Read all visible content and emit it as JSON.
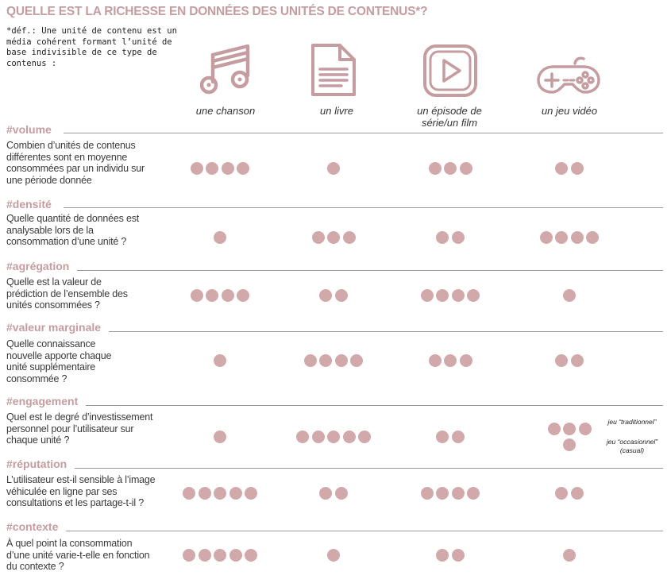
{
  "title": "QUELLE EST LA RICHESSE EN DONNÉES DES UNITÉS DE CONTENUS*?",
  "definition": "*déf.: Une unité de contenu est un média cohérent formant l’unité de base indivisible de ce type de contenus :",
  "colors": {
    "accent": "#c59ca0",
    "dot": "#d2a9ab",
    "rule": "#9a9a9a"
  },
  "columns": [
    {
      "label": "une chanson",
      "icon": "music-note-icon"
    },
    {
      "label": "un livre",
      "icon": "document-icon"
    },
    {
      "label": "un épisode de série/un film",
      "icon": "play-icon"
    },
    {
      "label": "un jeu vidéo",
      "icon": "gamepad-icon"
    }
  ],
  "sections": [
    {
      "tag": "#volume",
      "question": "Combien d’unités de contenus différentes sont en moyenne consommées par un individu sur une période donnée",
      "ratings": [
        4,
        1,
        3,
        2
      ]
    },
    {
      "tag": "#densité",
      "question": "Quelle quantité de données est analysable lors de la consommation d’une unité ?",
      "ratings": [
        1,
        3,
        2,
        4
      ]
    },
    {
      "tag": "#agrégation",
      "question": "Quelle est la valeur de prédiction de l’ensemble des unités consommées ?",
      "ratings": [
        4,
        2,
        4,
        1
      ]
    },
    {
      "tag": "#valeur marginale",
      "question": "Quelle connaissance nouvelle apporte chaque unité supplémentaire consommée ?",
      "ratings": [
        1,
        4,
        3,
        2
      ]
    },
    {
      "tag": "#engagement",
      "question": "Quel est le degré d’investissement personnel pour l’utilisateur sur chaque unité ?",
      "ratings": [
        1,
        5,
        2,
        3
      ],
      "game_split": {
        "traditional": 3,
        "casual": 1
      }
    },
    {
      "tag": "#réputation",
      "question": "L’utilisateur est-il sensible à l’image véhiculée en ligne par ses consultations et les partage-t-il ?",
      "ratings": [
        5,
        2,
        4,
        2
      ]
    },
    {
      "tag": "#contexte",
      "question": "À quel point la consommation d’une unité varie-t-elle en fonction du contexte ?",
      "ratings": [
        5,
        1,
        2,
        1
      ]
    }
  ],
  "game_notes": {
    "traditional": "jeu “traditionnel”",
    "casual": "jeu “occasionnel” (casual)"
  }
}
